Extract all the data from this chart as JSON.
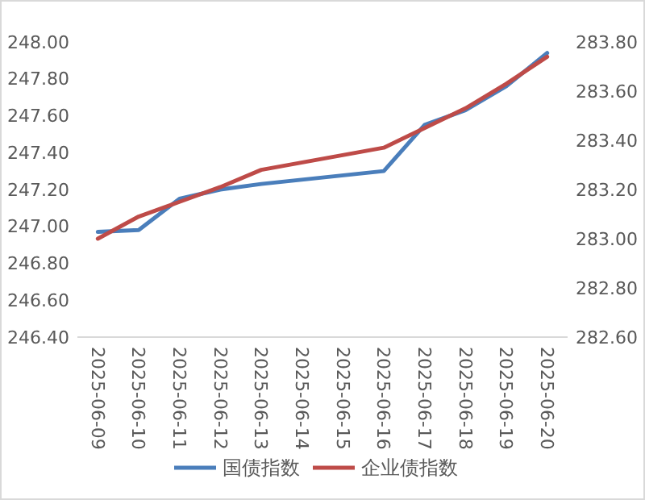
{
  "chart_data": {
    "type": "line",
    "x": [
      "2025-06-09",
      "2025-06-10",
      "2025-06-11",
      "2025-06-12",
      "2025-06-13",
      "2025-06-16",
      "2025-06-17",
      "2025-06-18",
      "2025-06-19",
      "2025-06-20"
    ],
    "xlim": [
      "2025-06-08T12:00",
      "2025-06-20T12:00"
    ],
    "xticks": [
      {
        "value": "2025-06-09",
        "label": "2025-06-09"
      },
      {
        "value": "2025-06-10",
        "label": "2025-06-10"
      },
      {
        "value": "2025-06-11",
        "label": "2025-06-11"
      },
      {
        "value": "2025-06-12",
        "label": "2025-06-12"
      },
      {
        "value": "2025-06-13",
        "label": "2025-06-13"
      },
      {
        "value": "2025-06-14",
        "label": "2025-06-14"
      },
      {
        "value": "2025-06-15",
        "label": "2025-06-15"
      },
      {
        "value": "2025-06-16",
        "label": "2025-06-16"
      },
      {
        "value": "2025-06-17",
        "label": "2025-06-17"
      },
      {
        "value": "2025-06-18",
        "label": "2025-06-18"
      },
      {
        "value": "2025-06-19",
        "label": "2025-06-19"
      },
      {
        "value": "2025-06-20",
        "label": "2025-06-20"
      }
    ],
    "ylim": [
      246.4,
      248.0
    ],
    "yticks": [
      {
        "value": 246.4,
        "label": "246.40"
      },
      {
        "value": 246.6,
        "label": "246.60"
      },
      {
        "value": 246.8,
        "label": "246.80"
      },
      {
        "value": 247.0,
        "label": "247.00"
      },
      {
        "value": 247.2,
        "label": "247.20"
      },
      {
        "value": 247.4,
        "label": "247.40"
      },
      {
        "value": 247.6,
        "label": "247.60"
      },
      {
        "value": 247.8,
        "label": "247.80"
      },
      {
        "value": 248.0,
        "label": "248.00"
      }
    ],
    "y2lim": [
      282.6,
      283.8
    ],
    "y2ticks": [
      {
        "value": 282.6,
        "label": "282.60"
      },
      {
        "value": 282.8,
        "label": "282.80"
      },
      {
        "value": 283.0,
        "label": "283.00"
      },
      {
        "value": 283.2,
        "label": "283.20"
      },
      {
        "value": 283.4,
        "label": "283.40"
      },
      {
        "value": 283.6,
        "label": "283.60"
      },
      {
        "value": 283.8,
        "label": "283.80"
      }
    ],
    "series": [
      {
        "name": "国债指数",
        "color": "#4a7ebb",
        "values": [
          246.97,
          246.98,
          247.15,
          247.2,
          247.23,
          247.3,
          247.55,
          247.63,
          247.76,
          247.94
        ]
      },
      {
        "name": "企业债指数",
        "color": "#be4b48",
        "axis": "y2",
        "values": [
          283.0,
          283.09,
          283.15,
          283.21,
          283.28,
          283.37,
          283.45,
          283.53,
          283.63,
          283.74
        ]
      }
    ],
    "grid": false,
    "legend": "bottom",
    "marker": "none",
    "line_style": "solid"
  }
}
